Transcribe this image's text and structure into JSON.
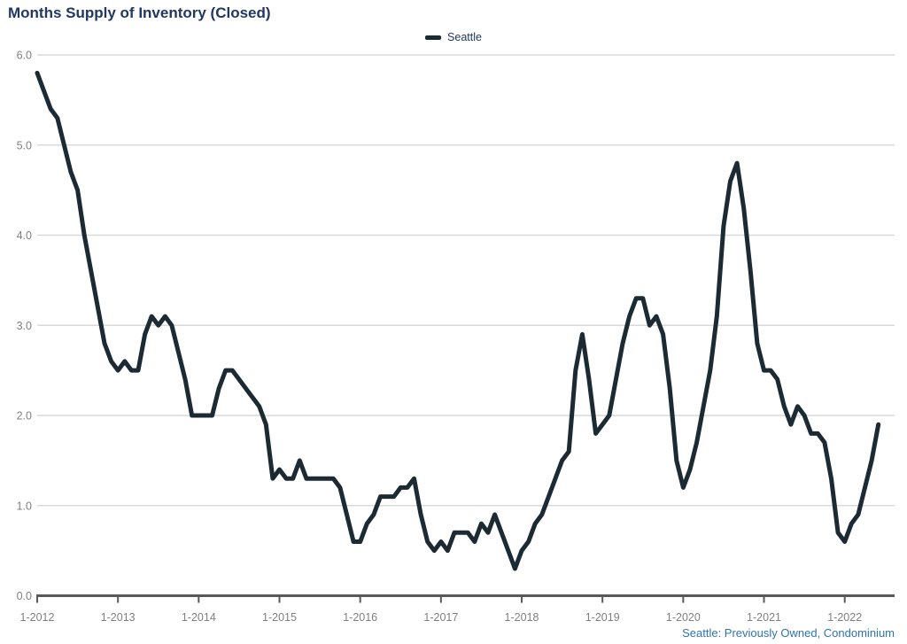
{
  "title": "Months Supply of Inventory (Closed)",
  "legend": {
    "label": "Seattle"
  },
  "footer": "Seattle: Previously Owned, Condominium",
  "colors": {
    "line": "#1c2a33",
    "title_text": "#1f3864",
    "legend_text": "#1f3864",
    "footer_text": "#2e74b5",
    "grid": "#d9d9d9",
    "axis": "#595959",
    "tick_text": "#7f7f7f"
  },
  "chart_data": {
    "type": "line",
    "title": "Months Supply of Inventory (Closed)",
    "x_start": "2012-01",
    "x_freq": "monthly",
    "x_tick_labels": [
      "1-2012",
      "1-2013",
      "1-2014",
      "1-2015",
      "1-2016",
      "1-2017",
      "1-2018",
      "1-2019",
      "1-2020",
      "1-2021",
      "1-2022"
    ],
    "y_tick_labels": [
      "0.0",
      "1.0",
      "2.0",
      "3.0",
      "4.0",
      "5.0",
      "6.0"
    ],
    "ylim": [
      0,
      6
    ],
    "grid": "horizontal",
    "legend_position": "top-center",
    "series": [
      {
        "name": "Seattle",
        "values": [
          5.8,
          5.6,
          5.4,
          5.3,
          5.0,
          4.7,
          4.5,
          4.0,
          3.6,
          3.2,
          2.8,
          2.6,
          2.5,
          2.6,
          2.5,
          2.5,
          2.9,
          3.1,
          3.0,
          3.1,
          3.0,
          2.7,
          2.4,
          2.0,
          2.0,
          2.0,
          2.0,
          2.3,
          2.5,
          2.5,
          2.4,
          2.3,
          2.2,
          2.1,
          1.9,
          1.3,
          1.4,
          1.3,
          1.3,
          1.5,
          1.3,
          1.3,
          1.3,
          1.3,
          1.3,
          1.2,
          0.9,
          0.6,
          0.6,
          0.8,
          0.9,
          1.1,
          1.1,
          1.1,
          1.2,
          1.2,
          1.3,
          0.9,
          0.6,
          0.5,
          0.6,
          0.5,
          0.7,
          0.7,
          0.7,
          0.6,
          0.8,
          0.7,
          0.9,
          0.7,
          0.5,
          0.3,
          0.5,
          0.6,
          0.8,
          0.9,
          1.1,
          1.3,
          1.5,
          1.6,
          2.5,
          2.9,
          2.4,
          1.8,
          1.9,
          2.0,
          2.4,
          2.8,
          3.1,
          3.3,
          3.3,
          3.0,
          3.1,
          2.9,
          2.3,
          1.5,
          1.2,
          1.4,
          1.7,
          2.1,
          2.5,
          3.1,
          4.1,
          4.6,
          4.8,
          4.3,
          3.6,
          2.8,
          2.5,
          2.5,
          2.4,
          2.1,
          1.9,
          2.1,
          2.0,
          1.8,
          1.8,
          1.7,
          1.3,
          0.7,
          0.6,
          0.8,
          0.9,
          1.2,
          1.5,
          1.9
        ]
      }
    ]
  }
}
